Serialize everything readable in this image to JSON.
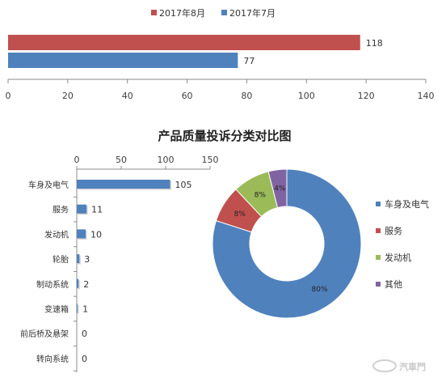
{
  "title": "产品质量投诉分类对比图",
  "watermark": "汽車門",
  "chart_data": [
    {
      "type": "bar",
      "orientation": "horizontal",
      "series": [
        {
          "name": "2017年8月",
          "color": "#C0504D",
          "values": [
            118
          ]
        },
        {
          "name": "2017年7月",
          "color": "#4F81BD",
          "values": [
            77
          ]
        }
      ],
      "xlim": [
        0,
        140
      ],
      "xticks": [
        0,
        20,
        40,
        60,
        80,
        100,
        120,
        140
      ],
      "legend_position": "top"
    },
    {
      "type": "bar",
      "orientation": "horizontal",
      "categories": [
        "车身及电气",
        "服务",
        "发动机",
        "轮胎",
        "制动系统",
        "变速箱",
        "前后桥及悬架",
        "转向系统"
      ],
      "values": [
        105,
        11,
        10,
        3,
        2,
        1,
        0,
        0
      ],
      "xlim": [
        0,
        150
      ],
      "xticks": [
        0,
        50,
        100,
        150
      ],
      "color": "#4F81BD"
    },
    {
      "type": "pie",
      "donut": true,
      "slices": [
        {
          "label": "车身及电气",
          "value": 80,
          "display": "80%",
          "color": "#4F81BD"
        },
        {
          "label": "服务",
          "value": 8,
          "display": "8%",
          "color": "#C0504D"
        },
        {
          "label": "发动机",
          "value": 8,
          "display": "8%",
          "color": "#9BBB59"
        },
        {
          "label": "其他",
          "value": 4,
          "display": "4%",
          "color": "#8064A2"
        }
      ],
      "legend_position": "right"
    }
  ]
}
